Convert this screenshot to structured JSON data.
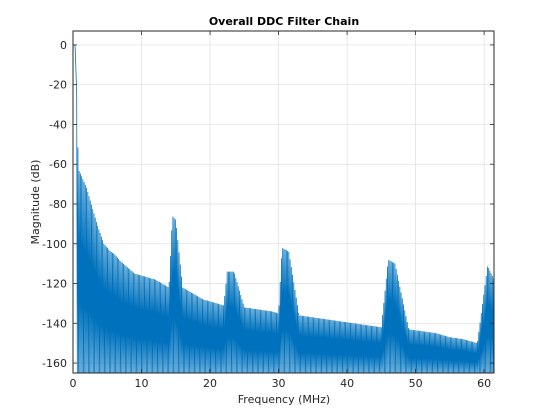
{
  "chart_data": {
    "type": "line",
    "title": "Overall DDC Filter Chain",
    "xlabel": "Frequency (MHz)",
    "ylabel": "Magnitude (dB)",
    "xlim": [
      0,
      61.44
    ],
    "ylim": [
      -165,
      7
    ],
    "xticks": [
      0,
      10,
      20,
      30,
      40,
      50,
      60
    ],
    "yticks": [
      0,
      -20,
      -40,
      -60,
      -80,
      -100,
      -120,
      -140,
      -160
    ],
    "xtick_labels": [
      "0",
      "10",
      "20",
      "30",
      "40",
      "50",
      "60"
    ],
    "ytick_labels": [
      "0",
      "-20",
      "-40",
      "-60",
      "-80",
      "-100",
      "-120",
      "-140",
      "-160"
    ],
    "grid": true,
    "line_color": "#0072BD",
    "grid_color": "#dfdfdf",
    "series": [
      {
        "name": "",
        "envelope": {
          "x": [
            0.0,
            0.3,
            0.5,
            0.8,
            1.0,
            1.5,
            2.0,
            2.5,
            3.0,
            3.5,
            4.0,
            4.5,
            5.0,
            5.5,
            6.0,
            6.5,
            7.0,
            8.0,
            9.0,
            10.0,
            11.0,
            12.0,
            13.0,
            14.0,
            14.5,
            15.0,
            16.0,
            17.0,
            18.0,
            19.0,
            20.0,
            21.0,
            22.0,
            22.5,
            23.5,
            25.0,
            27.0,
            29.0,
            30.0,
            30.5,
            31.5,
            33.0,
            35.0,
            37.0,
            39.0,
            41.0,
            43.0,
            45.0,
            46.0,
            47.0,
            49.0,
            51.0,
            53.0,
            55.0,
            57.0,
            59.0,
            60.5,
            61.44
          ],
          "y": [
            0,
            0,
            -20,
            -63,
            -64,
            -68,
            -72,
            -78,
            -84,
            -90,
            -95,
            -100,
            -102,
            -104,
            -105,
            -107,
            -109,
            -112,
            -115,
            -116,
            -117,
            -118,
            -120,
            -122,
            -86,
            -88,
            -122,
            -124,
            -126,
            -128,
            -129,
            -130,
            -131,
            -114,
            -114,
            -132,
            -133,
            -134,
            -135,
            -102,
            -104,
            -136,
            -137,
            -138,
            -139,
            -140,
            -141,
            -142,
            -108,
            -110,
            -143,
            -144,
            -145,
            -147,
            -148,
            -150,
            -111,
            -118
          ]
        }
      }
    ]
  }
}
